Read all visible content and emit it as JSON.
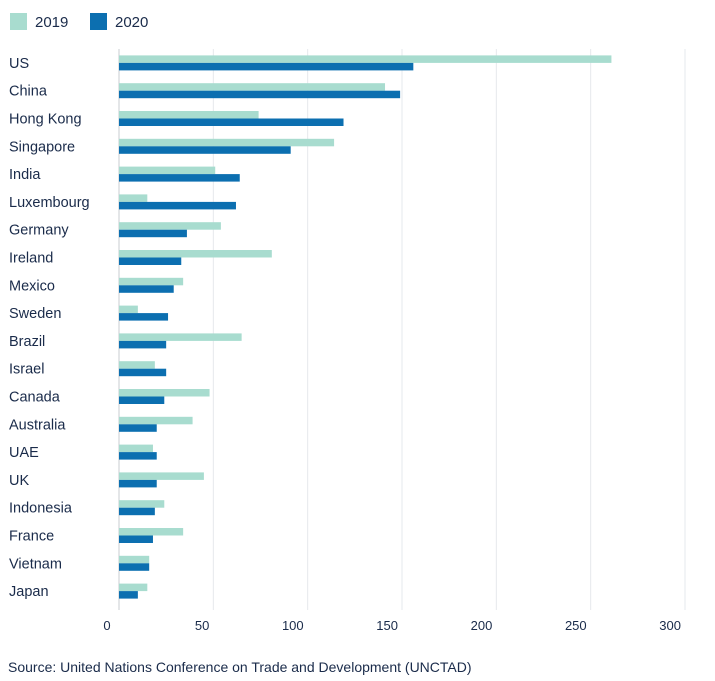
{
  "chart_data": {
    "type": "bar",
    "orientation": "horizontal",
    "categories": [
      "US",
      "China",
      "Hong Kong",
      "Singapore",
      "India",
      "Luxembourg",
      "Germany",
      "Ireland",
      "Mexico",
      "Sweden",
      "Brazil",
      "Israel",
      "Canada",
      "Australia",
      "UAE",
      "UK",
      "Indonesia",
      "France",
      "Vietnam",
      "Japan"
    ],
    "series": [
      {
        "name": "2019",
        "color": "#a8dccf",
        "values": [
          261,
          141,
          74,
          114,
          51,
          15,
          54,
          81,
          34,
          10,
          65,
          19,
          48,
          39,
          18,
          45,
          24,
          34,
          16,
          15
        ]
      },
      {
        "name": "2020",
        "color": "#0c6fb0",
        "values": [
          156,
          149,
          119,
          91,
          64,
          62,
          36,
          33,
          29,
          26,
          25,
          25,
          24,
          20,
          20,
          20,
          19,
          18,
          16,
          10
        ]
      }
    ],
    "xlim": [
      0,
      300
    ],
    "xticks": [
      0,
      50,
      100,
      150,
      200,
      250,
      300
    ],
    "grid": true,
    "legend_position": "top-left"
  },
  "source_text": "Source: United Nations Conference on Trade and Development (UNCTAD)"
}
